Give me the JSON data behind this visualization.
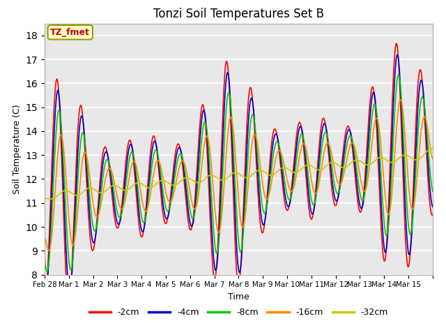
{
  "title": "Tonzi Soil Temperatures Set B",
  "xlabel": "Time",
  "ylabel": "Soil Temperature (C)",
  "ylim": [
    8.0,
    18.5
  ],
  "yticks": [
    8.0,
    9.0,
    10.0,
    11.0,
    12.0,
    13.0,
    14.0,
    15.0,
    16.0,
    17.0,
    18.0
  ],
  "bg_color": "#e8e8e8",
  "annotation_text": "TZ_fmet",
  "annotation_color": "#cc0000",
  "annotation_bg": "#ffffcc",
  "line_colors": {
    "-2cm": "#ff0000",
    "-4cm": "#0000cc",
    "-8cm": "#00cc00",
    "-16cm": "#ff8800",
    "-32cm": "#cccc00"
  },
  "legend_labels": [
    "-2cm",
    "-4cm",
    "-8cm",
    "-16cm",
    "-32cm"
  ],
  "num_days": 16,
  "figsize": [
    6.4,
    4.8
  ],
  "dpi": 100
}
